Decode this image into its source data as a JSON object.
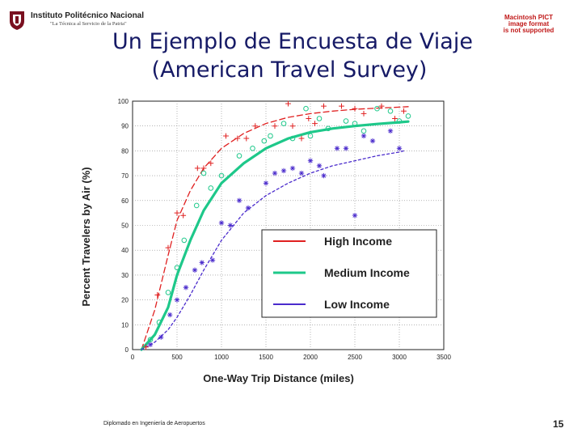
{
  "header": {
    "institution": "Instituto Politécnico Nacional",
    "motto": "\"La Técnica al Servicio de la Patria\"",
    "stamp_lines": [
      "Macintosh PICT",
      "image format",
      "is not supported"
    ]
  },
  "slide": {
    "title_line1": "Un Ejemplo de Encuesta de Viaje",
    "title_line2": "(American Travel Survey)",
    "footer": "Diplomado en Ingeniería de Aeropuertos",
    "page_number": "15"
  },
  "colors": {
    "title": "#161a66",
    "high": "#e02020",
    "medium": "#1ec88a",
    "low": "#4a2bcc",
    "stamp": "#c01818"
  },
  "chart_data": {
    "type": "scatter",
    "xlabel": "One-Way Trip Distance (miles)",
    "ylabel": "Percent Travelers by Air (%)",
    "xlim": [
      0,
      3500
    ],
    "ylim": [
      0,
      100
    ],
    "xticks": [
      0,
      500,
      1000,
      1500,
      2000,
      2500,
      3000,
      3500
    ],
    "yticks": [
      0,
      10,
      20,
      30,
      40,
      50,
      60,
      70,
      80,
      90,
      100
    ],
    "grid": true,
    "legend_position": "center-right",
    "series": [
      {
        "name": "High Income",
        "key": "high",
        "points": [
          [
            150,
            1
          ],
          [
            280,
            22
          ],
          [
            400,
            41
          ],
          [
            500,
            55
          ],
          [
            570,
            54
          ],
          [
            730,
            73
          ],
          [
            800,
            73
          ],
          [
            880,
            75
          ],
          [
            1050,
            86
          ],
          [
            1180,
            85
          ],
          [
            1280,
            85
          ],
          [
            1380,
            90
          ],
          [
            1600,
            90
          ],
          [
            1750,
            99
          ],
          [
            1800,
            90
          ],
          [
            1900,
            85
          ],
          [
            1980,
            93
          ],
          [
            2050,
            91
          ],
          [
            2150,
            98
          ],
          [
            2350,
            98
          ],
          [
            2500,
            97
          ],
          [
            2600,
            95
          ],
          [
            2800,
            98
          ],
          [
            2950,
            93
          ],
          [
            3050,
            96
          ]
        ],
        "curve": [
          [
            100,
            0
          ],
          [
            250,
            16
          ],
          [
            400,
            38
          ],
          [
            500,
            52
          ],
          [
            650,
            64
          ],
          [
            800,
            73
          ],
          [
            1000,
            81
          ],
          [
            1250,
            87
          ],
          [
            1500,
            91
          ],
          [
            1750,
            93.5
          ],
          [
            2000,
            95
          ],
          [
            2250,
            96
          ],
          [
            2500,
            96.7
          ],
          [
            2750,
            97.2
          ],
          [
            3000,
            97.6
          ],
          [
            3100,
            97.8
          ]
        ]
      },
      {
        "name": "Medium Income",
        "key": "medium",
        "points": [
          [
            200,
            4
          ],
          [
            300,
            11
          ],
          [
            400,
            23
          ],
          [
            500,
            33
          ],
          [
            580,
            44
          ],
          [
            720,
            58
          ],
          [
            800,
            71
          ],
          [
            880,
            65
          ],
          [
            1000,
            70
          ],
          [
            1200,
            78
          ],
          [
            1350,
            81
          ],
          [
            1480,
            84
          ],
          [
            1550,
            86
          ],
          [
            1700,
            91
          ],
          [
            1800,
            85
          ],
          [
            1950,
            97
          ],
          [
            2000,
            86
          ],
          [
            2100,
            93
          ],
          [
            2200,
            89
          ],
          [
            2400,
            92
          ],
          [
            2500,
            91
          ],
          [
            2600,
            88
          ],
          [
            2750,
            97
          ],
          [
            2900,
            96
          ],
          [
            3000,
            92
          ],
          [
            3100,
            94
          ]
        ],
        "curve": [
          [
            100,
            0
          ],
          [
            250,
            6
          ],
          [
            400,
            17
          ],
          [
            500,
            30
          ],
          [
            650,
            44
          ],
          [
            800,
            56
          ],
          [
            1000,
            67
          ],
          [
            1250,
            75
          ],
          [
            1500,
            81
          ],
          [
            1750,
            85
          ],
          [
            2000,
            87.5
          ],
          [
            2250,
            89
          ],
          [
            2500,
            90
          ],
          [
            2750,
            90.8
          ],
          [
            3000,
            91.5
          ],
          [
            3100,
            91.8
          ]
        ]
      },
      {
        "name": "Low Income",
        "key": "low",
        "points": [
          [
            200,
            2
          ],
          [
            320,
            5
          ],
          [
            420,
            14
          ],
          [
            500,
            20
          ],
          [
            600,
            25
          ],
          [
            700,
            32
          ],
          [
            780,
            35
          ],
          [
            900,
            36
          ],
          [
            1000,
            51
          ],
          [
            1100,
            50
          ],
          [
            1200,
            60
          ],
          [
            1300,
            57
          ],
          [
            1500,
            67
          ],
          [
            1600,
            71
          ],
          [
            1700,
            72
          ],
          [
            1800,
            73
          ],
          [
            1900,
            71
          ],
          [
            2000,
            76
          ],
          [
            2100,
            74
          ],
          [
            2150,
            70
          ],
          [
            2300,
            81
          ],
          [
            2400,
            81
          ],
          [
            2500,
            54
          ],
          [
            2600,
            86
          ],
          [
            2700,
            84
          ],
          [
            2900,
            88
          ],
          [
            3000,
            81
          ]
        ],
        "curve": [
          [
            100,
            0
          ],
          [
            250,
            3
          ],
          [
            400,
            8
          ],
          [
            500,
            13
          ],
          [
            650,
            22
          ],
          [
            800,
            32
          ],
          [
            1000,
            44
          ],
          [
            1250,
            55
          ],
          [
            1500,
            62
          ],
          [
            1750,
            67
          ],
          [
            2000,
            71
          ],
          [
            2250,
            74
          ],
          [
            2500,
            76
          ],
          [
            2750,
            78
          ],
          [
            3000,
            79.5
          ],
          [
            3050,
            80
          ]
        ]
      }
    ]
  }
}
